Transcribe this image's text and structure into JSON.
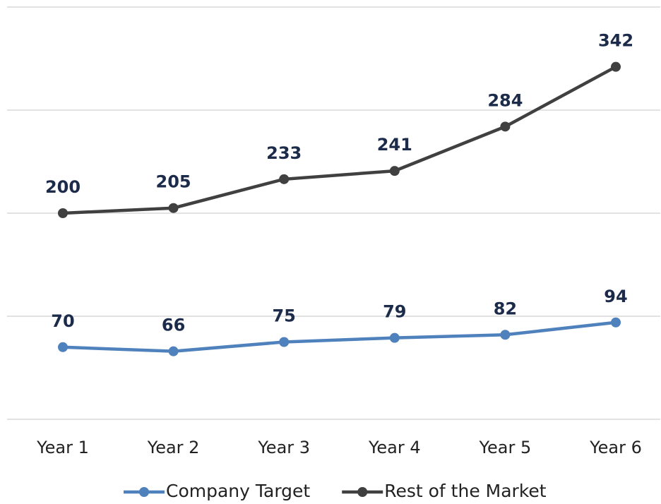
{
  "chart_data": {
    "type": "line",
    "categories": [
      "Year 1",
      "Year 2",
      "Year 3",
      "Year 4",
      "Year 5",
      "Year 6"
    ],
    "series": [
      {
        "name": "Company Target",
        "color": "#4f81bd",
        "values": [
          70,
          66,
          75,
          79,
          82,
          94
        ]
      },
      {
        "name": "Rest of the Market",
        "color": "#404040",
        "values": [
          200,
          205,
          233,
          241,
          284,
          342
        ]
      }
    ],
    "ylim": [
      0,
      400
    ],
    "yticks": [
      0,
      100,
      200,
      300,
      400
    ],
    "grid": true,
    "legend": "bottom"
  }
}
